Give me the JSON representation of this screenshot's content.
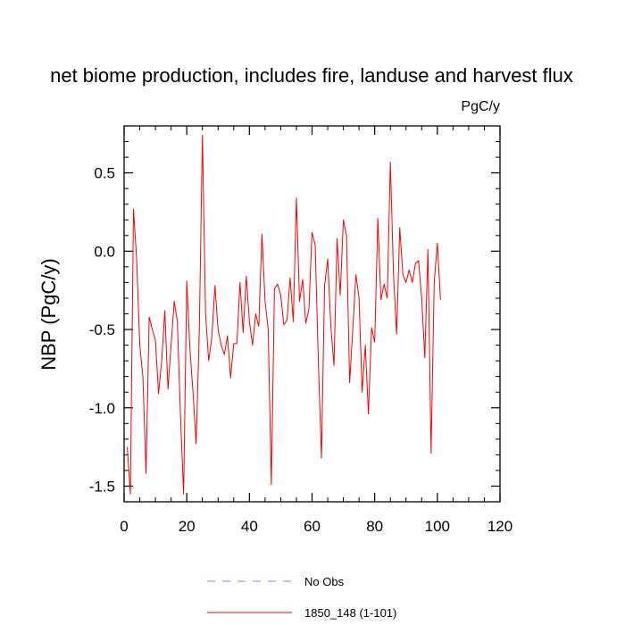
{
  "chart_data": {
    "type": "line",
    "title": "net biome production, includes fire, landuse and harvest flux",
    "units_label": "PgC/y",
    "ylabel": "NBP  (PgC/y)",
    "xlabel": "",
    "xlim": [
      0,
      120
    ],
    "ylim": [
      -1.6,
      0.8
    ],
    "x_ticks": [
      0,
      20,
      40,
      60,
      80,
      100,
      120
    ],
    "x_tick_labels": [
      "0",
      "20",
      "40",
      "60",
      "80",
      "100",
      "120"
    ],
    "y_ticks": [
      -1.5,
      -1.0,
      -0.5,
      0.0,
      0.5
    ],
    "y_tick_labels": [
      "-1.5",
      "-1.0",
      "-0.5",
      "0.0",
      "0.5"
    ],
    "grid": false,
    "legend_position": "bottom",
    "series": [
      {
        "name": "1850_148 (1-101)",
        "color": "#ff0000",
        "style": "solid",
        "x": [
          1,
          2,
          3,
          4,
          5,
          6,
          7,
          8,
          9,
          10,
          11,
          12,
          13,
          14,
          15,
          16,
          17,
          18,
          19,
          20,
          21,
          22,
          23,
          24,
          25,
          26,
          27,
          28,
          29,
          30,
          31,
          32,
          33,
          34,
          35,
          36,
          37,
          38,
          39,
          40,
          41,
          42,
          43,
          44,
          45,
          46,
          47,
          48,
          49,
          50,
          51,
          52,
          53,
          54,
          55,
          56,
          57,
          58,
          59,
          60,
          61,
          62,
          63,
          64,
          65,
          66,
          67,
          68,
          69,
          70,
          71,
          72,
          73,
          74,
          75,
          76,
          77,
          78,
          79,
          80,
          81,
          82,
          83,
          84,
          85,
          86,
          87,
          88,
          89,
          90,
          91,
          92,
          93,
          94,
          95,
          96,
          97,
          98,
          99,
          100,
          101
        ],
        "values": [
          -1.25,
          -1.55,
          0.27,
          -0.05,
          -0.6,
          -0.8,
          -1.42,
          -0.42,
          -0.5,
          -0.57,
          -0.91,
          -0.7,
          -0.38,
          -0.88,
          -0.6,
          -0.32,
          -0.45,
          -1.05,
          -1.55,
          -0.19,
          -0.62,
          -0.9,
          -1.23,
          -0.52,
          0.74,
          -0.4,
          -0.7,
          -0.55,
          -0.22,
          -0.5,
          -0.6,
          -0.66,
          -0.54,
          -0.81,
          -0.59,
          -0.59,
          -0.2,
          -0.52,
          -0.16,
          -0.45,
          -0.6,
          -0.4,
          -0.48,
          0.11,
          -0.32,
          -0.5,
          -1.49,
          -0.24,
          -0.21,
          -0.28,
          -0.47,
          -0.44,
          -0.17,
          -0.45,
          0.34,
          -0.32,
          -0.18,
          -0.46,
          -0.37,
          0.12,
          0.04,
          -0.7,
          -1.32,
          -0.22,
          -0.05,
          -0.48,
          -0.73,
          0.08,
          -0.28,
          0.2,
          0.1,
          -0.84,
          -0.5,
          -0.15,
          -0.3,
          -0.9,
          -0.6,
          -1.04,
          -0.49,
          -0.58,
          0.21,
          -0.31,
          -0.21,
          -0.3,
          0.57,
          -0.15,
          -0.53,
          0.15,
          -0.15,
          -0.2,
          -0.12,
          -0.2,
          -0.08,
          -0.06,
          -0.3,
          -0.68,
          0.01,
          -1.29,
          -0.2,
          0.05,
          -0.31
        ]
      }
    ],
    "legend": [
      {
        "name": "No Obs",
        "color": "#8080ff",
        "style": "dashed"
      },
      {
        "name": "1850_148 (1-101)",
        "color": "#ff0000",
        "style": "solid"
      }
    ]
  }
}
